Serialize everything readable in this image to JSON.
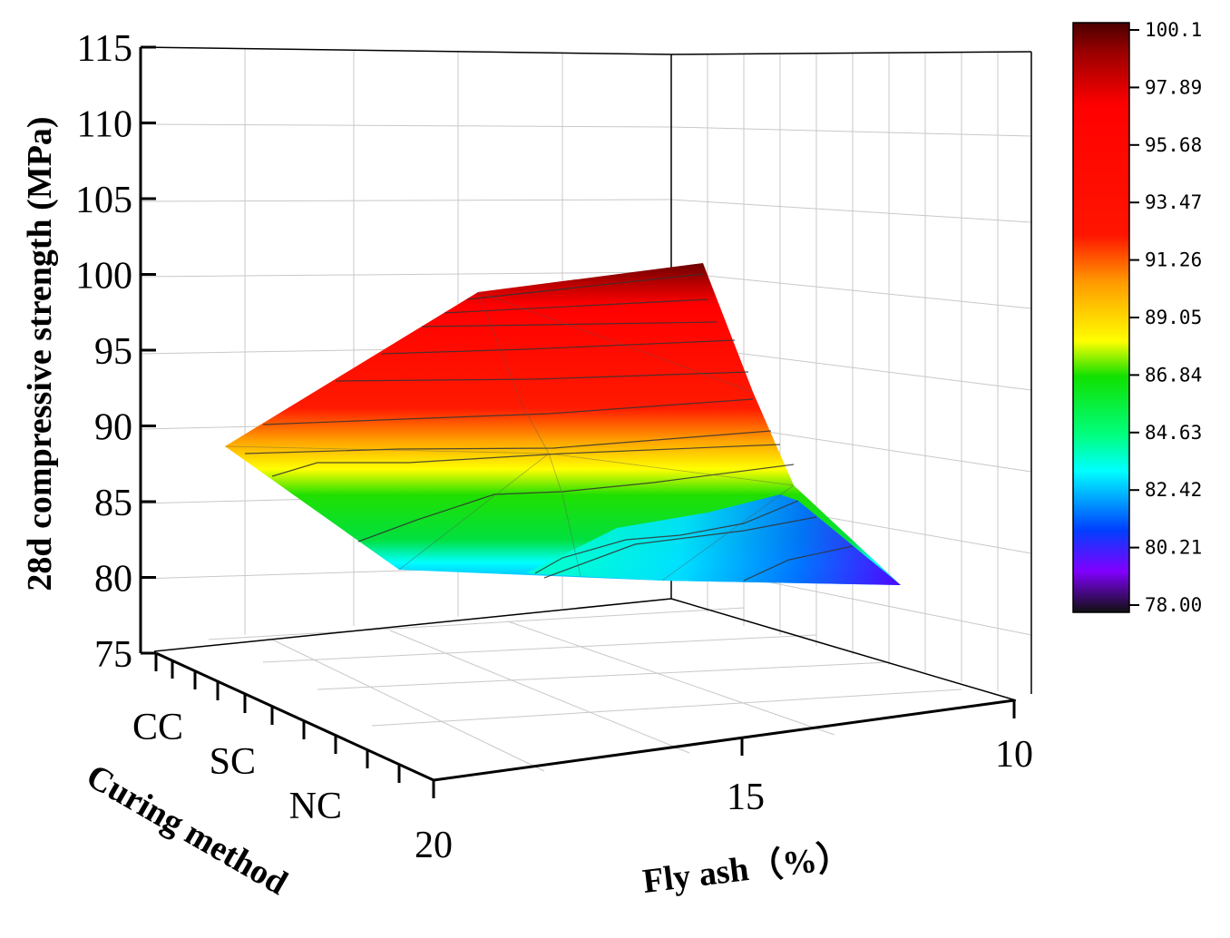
{
  "chart_data": {
    "type": "surface3d",
    "zlabel": "28d compressive strength (MPa)",
    "xlabel": "Fly ash（%）",
    "ylabel": "Curing method",
    "z_ticks": [
      "115",
      "110",
      "105",
      "100",
      "95",
      "90",
      "85",
      "80",
      "75"
    ],
    "z_range": [
      75,
      115
    ],
    "x_ticks": [
      "20",
      "15",
      "10"
    ],
    "y_ticks": [
      "CC",
      "SC",
      "NC"
    ],
    "surface": {
      "fly_ash": [
        20,
        15,
        10
      ],
      "curing": [
        "CC",
        "SC",
        "NC"
      ],
      "values": {
        "CC": [
          89,
          99,
          100
        ],
        "SC": [
          88,
          90,
          86
        ],
        "NC": [
          80.5,
          80,
          80
        ]
      }
    },
    "colorbar": {
      "labels": [
        "100.1",
        "97.89",
        "95.68",
        "93.47",
        "91.26",
        "89.05",
        "86.84",
        "84.63",
        "82.42",
        "80.21",
        "78.00"
      ],
      "range": [
        78.0,
        100.1
      ]
    }
  },
  "colors": {
    "stops": [
      "#5a0000",
      "#c80000",
      "#ff0000",
      "#ff2a00",
      "#ff9900",
      "#ffff00",
      "#00e000",
      "#00ffff",
      "#0050ff",
      "#8000ff",
      "#200020"
    ]
  }
}
